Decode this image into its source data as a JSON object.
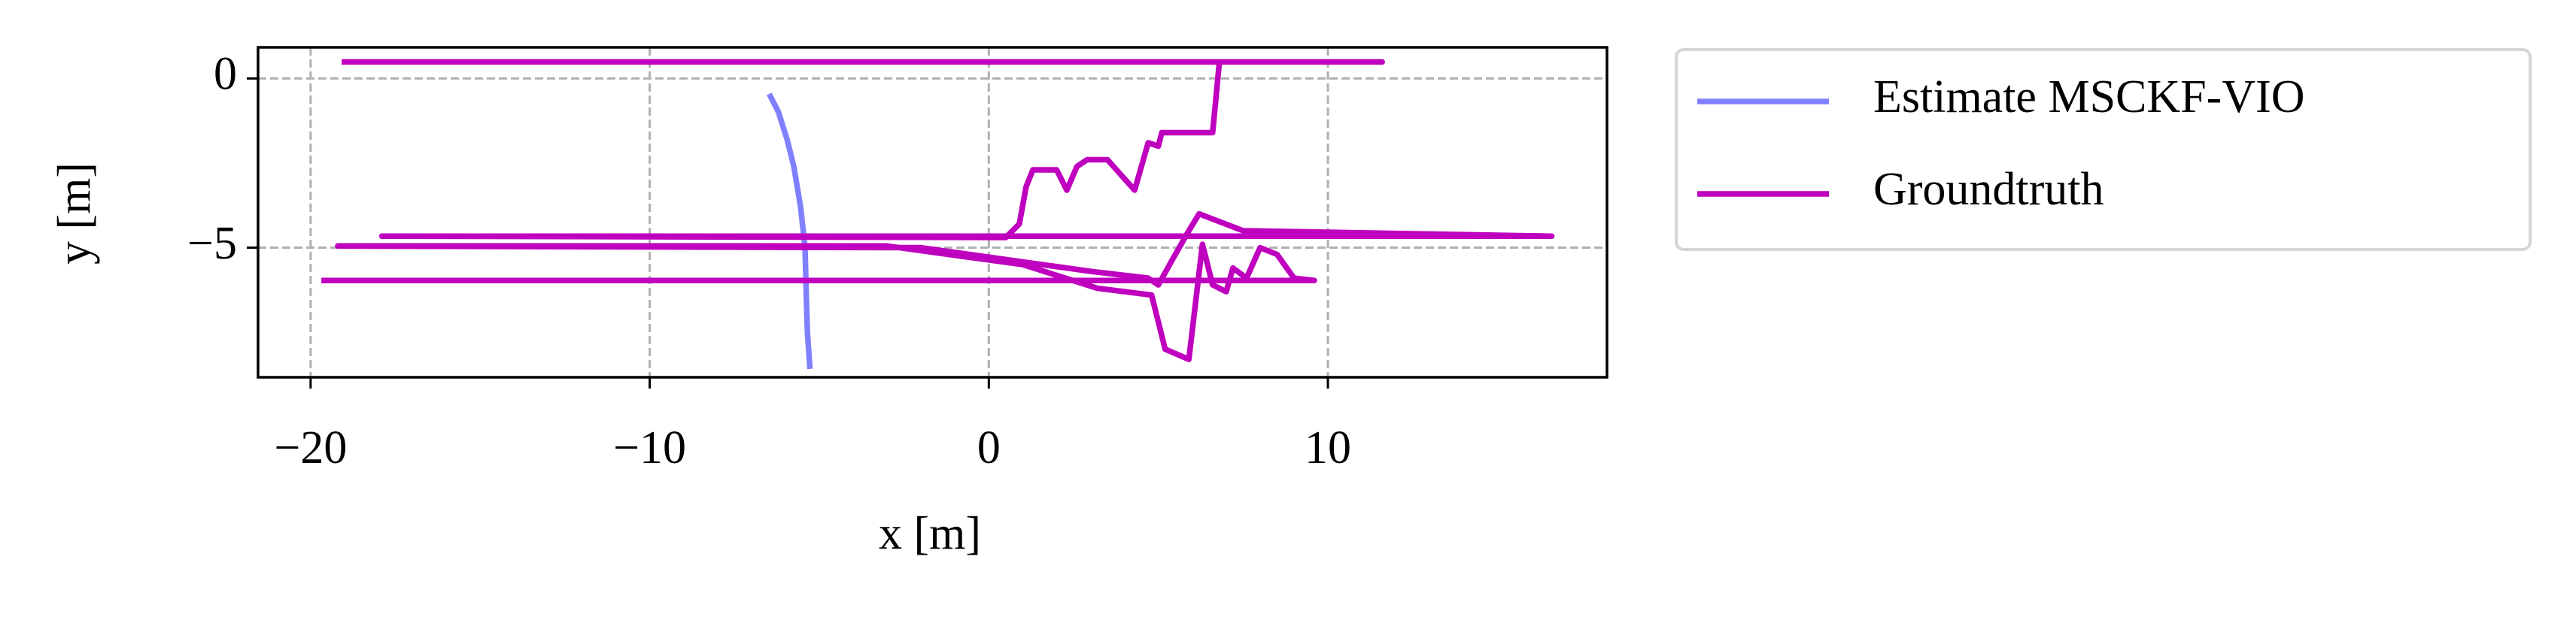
{
  "chart_data": {
    "type": "line",
    "xlabel": "x [m]",
    "ylabel": "y [m]",
    "xlim": [
      -21.55,
      18.23
    ],
    "ylim": [
      -8.83,
      0.92
    ],
    "xticks": [
      {
        "value": -20,
        "label": "−20"
      },
      {
        "value": -10,
        "label": "−10"
      },
      0,
      10
    ],
    "yticks": [
      0,
      {
        "value": -5,
        "label": "−5"
      }
    ],
    "grid": true,
    "legend": "outside upper right",
    "series": [
      {
        "name": "Estimate MSCKF-VIO",
        "color": "#8080ff",
        "x": [
          -6.44,
          -6.2,
          -5.95,
          -5.75,
          -5.55,
          -5.42,
          -5.38,
          -5.35,
          -5.28
        ],
        "values": [
          -0.53,
          -1.0,
          -1.8,
          -2.6,
          -3.8,
          -5.0,
          -6.5,
          -7.5,
          -8.5
        ]
      },
      {
        "name": "Groundtruth",
        "color": "#bf00bf",
        "x": [
          -19.0,
          11.6,
          6.8,
          6.6,
          5.1,
          5.0,
          4.7,
          4.3,
          3.5,
          2.9,
          2.6,
          2.3,
          2.0,
          1.3,
          1.1,
          0.9,
          0.5,
          -17.9,
          16.6,
          7.5,
          6.2,
          5.9,
          5.5,
          5.0,
          4.7,
          3.0,
          -2.0,
          -19.2,
          -3.0,
          1.0,
          3.2,
          4.8,
          5.2,
          5.9,
          6.3,
          6.6,
          7.0,
          7.2,
          7.6,
          8.0,
          8.5,
          9.0,
          9.6,
          -19.6
        ],
        "values": [
          0.49,
          0.49,
          0.49,
          -1.6,
          -1.6,
          -2.0,
          -1.9,
          -3.3,
          -2.4,
          -2.4,
          -2.6,
          -3.3,
          -2.7,
          -2.7,
          -3.2,
          -4.3,
          -4.7,
          -4.66,
          -4.66,
          -4.5,
          -4.0,
          -4.5,
          -5.2,
          -6.1,
          -5.9,
          -5.7,
          -5.0,
          -4.95,
          -4.95,
          -5.5,
          -6.2,
          -6.4,
          -8.0,
          -8.3,
          -4.9,
          -6.1,
          -6.3,
          -5.6,
          -5.9,
          -5.0,
          -5.2,
          -5.9,
          -5.97,
          -5.97
        ]
      }
    ]
  }
}
